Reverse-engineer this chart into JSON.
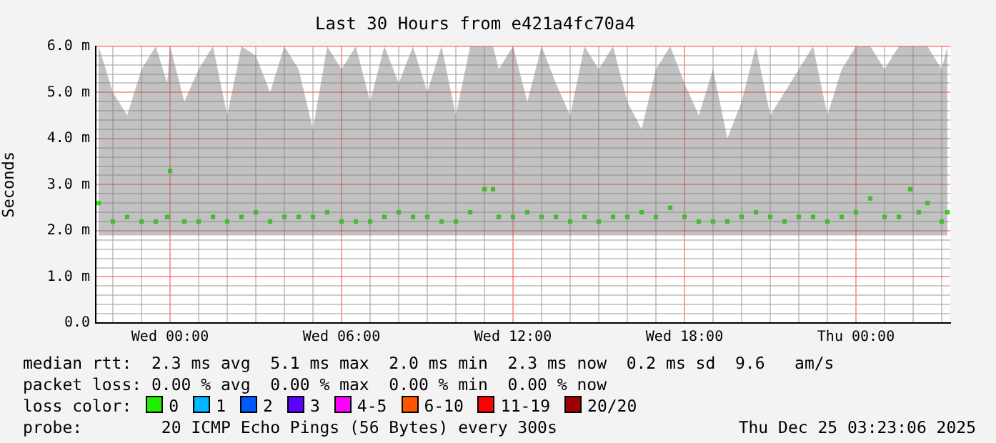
{
  "chart_data": {
    "type": "scatter",
    "title": "Last 30 Hours from e421a4fc70a4",
    "ylabel": "Seconds",
    "legend_title": "loss color:",
    "marker": "square",
    "grid": true,
    "legend": "bottom",
    "xlim": [
      "2025-12-23T21:24",
      "2025-12-25T03:18"
    ],
    "xticks": [
      {
        "value": "2025-12-23T22:00",
        "label": null
      },
      {
        "value": "2025-12-23T23:00",
        "label": null
      },
      {
        "value": "2025-12-24T00:00",
        "label": "Wed 00:00"
      },
      {
        "value": "2025-12-24T01:00",
        "label": null
      },
      {
        "value": "2025-12-24T02:00",
        "label": null
      },
      {
        "value": "2025-12-24T03:00",
        "label": null
      },
      {
        "value": "2025-12-24T04:00",
        "label": null
      },
      {
        "value": "2025-12-24T05:00",
        "label": null
      },
      {
        "value": "2025-12-24T06:00",
        "label": "Wed 06:00"
      },
      {
        "value": "2025-12-24T07:00",
        "label": null
      },
      {
        "value": "2025-12-24T08:00",
        "label": null
      },
      {
        "value": "2025-12-24T09:00",
        "label": null
      },
      {
        "value": "2025-12-24T10:00",
        "label": null
      },
      {
        "value": "2025-12-24T11:00",
        "label": null
      },
      {
        "value": "2025-12-24T12:00",
        "label": "Wed 12:00"
      },
      {
        "value": "2025-12-24T13:00",
        "label": null
      },
      {
        "value": "2025-12-24T14:00",
        "label": null
      },
      {
        "value": "2025-12-24T15:00",
        "label": null
      },
      {
        "value": "2025-12-24T16:00",
        "label": null
      },
      {
        "value": "2025-12-24T17:00",
        "label": null
      },
      {
        "value": "2025-12-24T18:00",
        "label": "Wed 18:00"
      },
      {
        "value": "2025-12-24T19:00",
        "label": null
      },
      {
        "value": "2025-12-24T20:00",
        "label": null
      },
      {
        "value": "2025-12-24T21:00",
        "label": null
      },
      {
        "value": "2025-12-24T22:00",
        "label": null
      },
      {
        "value": "2025-12-24T23:00",
        "label": null
      },
      {
        "value": "2025-12-25T00:00",
        "label": "Thu 00:00"
      },
      {
        "value": "2025-12-25T01:00",
        "label": null
      },
      {
        "value": "2025-12-25T02:00",
        "label": null
      },
      {
        "value": "2025-12-25T03:00",
        "label": null
      }
    ],
    "ylim": [
      0,
      6
    ],
    "yticks": [
      {
        "value": 0,
        "label": "0.0"
      },
      {
        "value": 0.2,
        "label": null
      },
      {
        "value": 0.4,
        "label": null
      },
      {
        "value": 0.6,
        "label": null
      },
      {
        "value": 0.8,
        "label": null
      },
      {
        "value": 1,
        "label": "1.0 m"
      },
      {
        "value": 1.2,
        "label": null
      },
      {
        "value": 1.4,
        "label": null
      },
      {
        "value": 1.6,
        "label": null
      },
      {
        "value": 1.8,
        "label": null
      },
      {
        "value": 2,
        "label": "2.0 m"
      },
      {
        "value": 2.2,
        "label": null
      },
      {
        "value": 2.4,
        "label": null
      },
      {
        "value": 2.6,
        "label": null
      },
      {
        "value": 2.8,
        "label": null
      },
      {
        "value": 3,
        "label": "3.0 m"
      },
      {
        "value": 3.2,
        "label": null
      },
      {
        "value": 3.4,
        "label": null
      },
      {
        "value": 3.6,
        "label": null
      },
      {
        "value": 3.8,
        "label": null
      },
      {
        "value": 4,
        "label": "4.0 m"
      },
      {
        "value": 4.2,
        "label": null
      },
      {
        "value": 4.4,
        "label": null
      },
      {
        "value": 4.6,
        "label": null
      },
      {
        "value": 4.8,
        "label": null
      },
      {
        "value": 5,
        "label": "5.0 m"
      },
      {
        "value": 5.2,
        "label": null
      },
      {
        "value": 5.4,
        "label": null
      },
      {
        "value": 5.6,
        "label": null
      },
      {
        "value": 5.8,
        "label": null
      },
      {
        "value": 6,
        "label": "6.0 m"
      }
    ],
    "x": [
      "2025-12-23T21:30",
      "2025-12-23T22:00",
      "2025-12-23T22:30",
      "2025-12-23T23:00",
      "2025-12-23T23:30",
      "2025-12-23T23:54",
      "2025-12-24T00:00",
      "2025-12-24T00:30",
      "2025-12-24T01:00",
      "2025-12-24T01:30",
      "2025-12-24T02:00",
      "2025-12-24T02:30",
      "2025-12-24T03:00",
      "2025-12-24T03:30",
      "2025-12-24T04:00",
      "2025-12-24T04:30",
      "2025-12-24T05:00",
      "2025-12-24T05:30",
      "2025-12-24T06:00",
      "2025-12-24T06:30",
      "2025-12-24T07:00",
      "2025-12-24T07:30",
      "2025-12-24T08:00",
      "2025-12-24T08:30",
      "2025-12-24T09:00",
      "2025-12-24T09:30",
      "2025-12-24T10:00",
      "2025-12-24T10:30",
      "2025-12-24T11:00",
      "2025-12-24T11:18",
      "2025-12-24T11:30",
      "2025-12-24T12:00",
      "2025-12-24T12:30",
      "2025-12-24T13:00",
      "2025-12-24T13:30",
      "2025-12-24T14:00",
      "2025-12-24T14:30",
      "2025-12-24T15:00",
      "2025-12-24T15:30",
      "2025-12-24T16:00",
      "2025-12-24T16:30",
      "2025-12-24T17:00",
      "2025-12-24T17:30",
      "2025-12-24T18:00",
      "2025-12-24T18:30",
      "2025-12-24T19:00",
      "2025-12-24T19:30",
      "2025-12-24T20:00",
      "2025-12-24T20:30",
      "2025-12-24T21:00",
      "2025-12-24T21:30",
      "2025-12-24T22:00",
      "2025-12-24T22:30",
      "2025-12-24T23:00",
      "2025-12-24T23:30",
      "2025-12-25T00:00",
      "2025-12-25T00:30",
      "2025-12-25T01:00",
      "2025-12-25T01:30",
      "2025-12-25T01:54",
      "2025-12-25T02:12",
      "2025-12-25T02:30",
      "2025-12-25T03:00",
      "2025-12-25T03:12"
    ],
    "series": [
      {
        "name": "0",
        "color": "#22ee00",
        "values": [
          2.6,
          2.2,
          2.3,
          2.2,
          2.2,
          2.3,
          3.3,
          2.2,
          2.2,
          2.3,
          2.2,
          2.3,
          2.4,
          2.2,
          2.3,
          2.3,
          2.3,
          2.4,
          2.2,
          2.2,
          2.2,
          2.3,
          2.4,
          2.3,
          2.3,
          2.2,
          2.2,
          2.4,
          2.9,
          2.9,
          2.3,
          2.3,
          2.4,
          2.3,
          2.3,
          2.2,
          2.3,
          2.2,
          2.3,
          2.3,
          2.4,
          2.3,
          2.5,
          2.3,
          2.2,
          2.2,
          2.2,
          2.3,
          2.4,
          2.3,
          2.2,
          2.3,
          2.3,
          2.2,
          2.3,
          2.4,
          2.7,
          2.3,
          2.3,
          2.9,
          2.4,
          2.6,
          2.2,
          2.4
        ],
        "lower": [
          1.9,
          1.9,
          1.9,
          1.9,
          1.9,
          1.9,
          1.9,
          1.9,
          1.9,
          1.9,
          1.9,
          1.9,
          1.9,
          1.9,
          1.9,
          1.9,
          1.9,
          1.9,
          1.9,
          1.9,
          1.9,
          1.9,
          1.9,
          1.9,
          1.9,
          1.9,
          1.9,
          1.9,
          1.9,
          1.9,
          1.9,
          1.9,
          1.9,
          1.9,
          1.9,
          1.9,
          1.9,
          1.9,
          1.9,
          1.9,
          1.9,
          1.9,
          1.9,
          1.9,
          1.9,
          1.9,
          1.9,
          1.9,
          1.9,
          1.9,
          1.9,
          1.9,
          1.9,
          1.9,
          1.9,
          1.9,
          1.9,
          1.9,
          1.9,
          1.9,
          1.9,
          1.9,
          1.9,
          1.9
        ],
        "upper": [
          6,
          5,
          4.5,
          5.5,
          6,
          5.2,
          6,
          4.8,
          5.5,
          6,
          4.5,
          6,
          5.8,
          5,
          6,
          5.5,
          4.2,
          6,
          5.5,
          6,
          4.8,
          6,
          5.2,
          6,
          5,
          6,
          4.5,
          6,
          6,
          6,
          5.5,
          6,
          4.8,
          6,
          5.2,
          4.5,
          6,
          5.5,
          6,
          4.8,
          4.2,
          5.5,
          6,
          5.2,
          4.5,
          5.5,
          4,
          4.8,
          6,
          4.5,
          5,
          5.5,
          6,
          4.5,
          5.5,
          6,
          6,
          5.5,
          6,
          6,
          6,
          6,
          5.5,
          6
        ]
      },
      {
        "name": "1",
        "color": "#00b8ff",
        "values": [
          null,
          null,
          null,
          null,
          null,
          null,
          null,
          null,
          null,
          null,
          null,
          null,
          null,
          null,
          null,
          null,
          null,
          null,
          null,
          null,
          null,
          null,
          null,
          null,
          null,
          null,
          null,
          null,
          null,
          null,
          null,
          null,
          null,
          null,
          null,
          null,
          null,
          null,
          null,
          null,
          null,
          null,
          null,
          null,
          null,
          null,
          null,
          null,
          null,
          null,
          null,
          null,
          null,
          null,
          null,
          null,
          null,
          null,
          null,
          null,
          null,
          null,
          null,
          null
        ]
      },
      {
        "name": "2",
        "color": "#0059ff",
        "values": [
          null,
          null,
          null,
          null,
          null,
          null,
          null,
          null,
          null,
          null,
          null,
          null,
          null,
          null,
          null,
          null,
          null,
          null,
          null,
          null,
          null,
          null,
          null,
          null,
          null,
          null,
          null,
          null,
          null,
          null,
          null,
          null,
          null,
          null,
          null,
          null,
          null,
          null,
          null,
          null,
          null,
          null,
          null,
          null,
          null,
          null,
          null,
          null,
          null,
          null,
          null,
          null,
          null,
          null,
          null,
          null,
          null,
          null,
          null,
          null,
          null,
          null,
          null,
          null
        ]
      },
      {
        "name": "3",
        "color": "#5e00ff",
        "values": [
          null,
          null,
          null,
          null,
          null,
          null,
          null,
          null,
          null,
          null,
          null,
          null,
          null,
          null,
          null,
          null,
          null,
          null,
          null,
          null,
          null,
          null,
          null,
          null,
          null,
          null,
          null,
          null,
          null,
          null,
          null,
          null,
          null,
          null,
          null,
          null,
          null,
          null,
          null,
          null,
          null,
          null,
          null,
          null,
          null,
          null,
          null,
          null,
          null,
          null,
          null,
          null,
          null,
          null,
          null,
          null,
          null,
          null,
          null,
          null,
          null,
          null,
          null,
          null
        ]
      },
      {
        "name": "4-5",
        "color": "#ff00ff",
        "values": [
          null,
          null,
          null,
          null,
          null,
          null,
          null,
          null,
          null,
          null,
          null,
          null,
          null,
          null,
          null,
          null,
          null,
          null,
          null,
          null,
          null,
          null,
          null,
          null,
          null,
          null,
          null,
          null,
          null,
          null,
          null,
          null,
          null,
          null,
          null,
          null,
          null,
          null,
          null,
          null,
          null,
          null,
          null,
          null,
          null,
          null,
          null,
          null,
          null,
          null,
          null,
          null,
          null,
          null,
          null,
          null,
          null,
          null,
          null,
          null,
          null,
          null,
          null,
          null
        ]
      },
      {
        "name": "6-10",
        "color": "#ff5500",
        "values": [
          null,
          null,
          null,
          null,
          null,
          null,
          null,
          null,
          null,
          null,
          null,
          null,
          null,
          null,
          null,
          null,
          null,
          null,
          null,
          null,
          null,
          null,
          null,
          null,
          null,
          null,
          null,
          null,
          null,
          null,
          null,
          null,
          null,
          null,
          null,
          null,
          null,
          null,
          null,
          null,
          null,
          null,
          null,
          null,
          null,
          null,
          null,
          null,
          null,
          null,
          null,
          null,
          null,
          null,
          null,
          null,
          null,
          null,
          null,
          null,
          null,
          null,
          null,
          null
        ]
      },
      {
        "name": "11-19",
        "color": "#ff0000",
        "values": [
          null,
          null,
          null,
          null,
          null,
          null,
          null,
          null,
          null,
          null,
          null,
          null,
          null,
          null,
          null,
          null,
          null,
          null,
          null,
          null,
          null,
          null,
          null,
          null,
          null,
          null,
          null,
          null,
          null,
          null,
          null,
          null,
          null,
          null,
          null,
          null,
          null,
          null,
          null,
          null,
          null,
          null,
          null,
          null,
          null,
          null,
          null,
          null,
          null,
          null,
          null,
          null,
          null,
          null,
          null,
          null,
          null,
          null,
          null,
          null,
          null,
          null,
          null,
          null
        ]
      },
      {
        "name": "20/20",
        "color": "#a10000",
        "values": [
          null,
          null,
          null,
          null,
          null,
          null,
          null,
          null,
          null,
          null,
          null,
          null,
          null,
          null,
          null,
          null,
          null,
          null,
          null,
          null,
          null,
          null,
          null,
          null,
          null,
          null,
          null,
          null,
          null,
          null,
          null,
          null,
          null,
          null,
          null,
          null,
          null,
          null,
          null,
          null,
          null,
          null,
          null,
          null,
          null,
          null,
          null,
          null,
          null,
          null,
          null,
          null,
          null,
          null,
          null,
          null,
          null,
          null,
          null,
          null,
          null,
          null,
          null,
          null
        ]
      }
    ],
    "annotations": [
      "median rtt:  2.3 ms avg  5.1 ms max  2.0 ms min  2.3 ms now  0.2 ms sd  9.6   am/s",
      "packet loss: 0.00 % avg  0.00 % max  0.00 % min  0.00 % now",
      "probe:        20 ICMP Echo Pings (56 Bytes) every 300s",
      "Thu Dec 25 03:23:06 2025"
    ]
  }
}
